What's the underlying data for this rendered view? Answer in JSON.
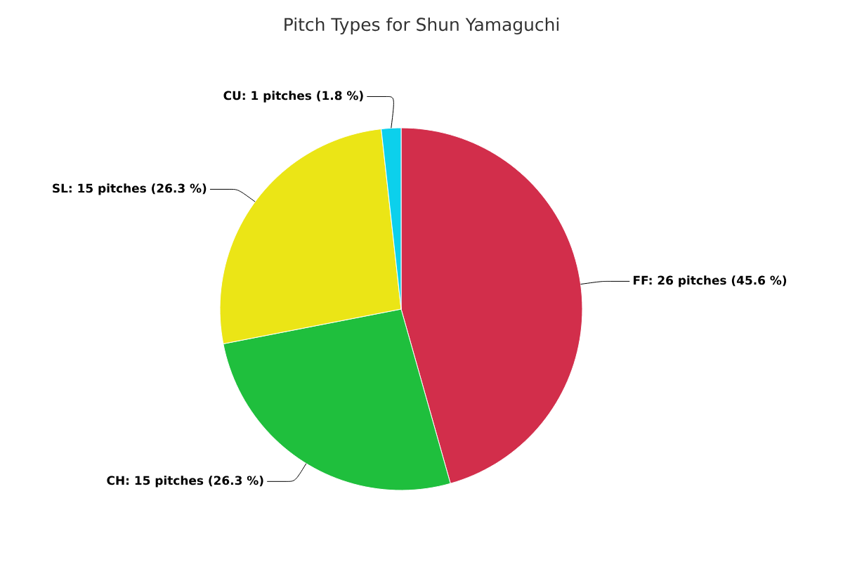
{
  "chart_data": {
    "type": "pie",
    "title": "Pitch Types for Shun Yamaguchi",
    "categories": [
      "FF: 26 pitches (45.6 %)",
      "CH: 15 pitches (26.3 %)",
      "SL: 15 pitches (26.3 %)",
      "CU: 1 pitches (1.8 %)"
    ],
    "values": [
      26,
      15,
      15,
      1
    ],
    "colors": [
      "#d22e4b",
      "#1fbf3d",
      "#ebe516",
      "#0cd0ec"
    ]
  }
}
